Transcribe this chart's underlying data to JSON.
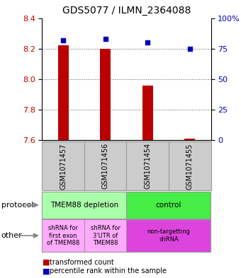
{
  "title": "GDS5077 / ILMN_2364088",
  "samples": [
    "GSM1071457",
    "GSM1071456",
    "GSM1071454",
    "GSM1071455"
  ],
  "bar_values": [
    8.22,
    8.2,
    7.96,
    7.61
  ],
  "dot_values": [
    82,
    83,
    80,
    75
  ],
  "bar_base": 7.6,
  "ylim_left": [
    7.6,
    8.4
  ],
  "ylim_right": [
    0,
    100
  ],
  "yticks_left": [
    7.6,
    7.8,
    8.0,
    8.2,
    8.4
  ],
  "yticks_right": [
    0,
    25,
    50,
    75,
    100
  ],
  "ytick_labels_right": [
    "0",
    "25",
    "50",
    "75",
    "100%"
  ],
  "bar_color": "#bb0000",
  "dot_color": "#0000bb",
  "grid_color": "#555555",
  "protocol_row": {
    "labels": [
      "TMEM88 depletion",
      "control"
    ],
    "spans": [
      2,
      2
    ],
    "colors": [
      "#aaffaa",
      "#44ee44"
    ]
  },
  "other_row": {
    "labels": [
      "shRNA for\nfirst exon\nof TMEM88",
      "shRNA for\n3'UTR of\nTMEM88",
      "non-targetting\nshRNA"
    ],
    "spans": [
      1,
      1,
      2
    ],
    "colors": [
      "#ffaaff",
      "#ffaaff",
      "#dd44dd"
    ]
  },
  "legend_red_label": "transformed count",
  "legend_blue_label": "percentile rank within the sample",
  "left_label_protocol": "protocol",
  "left_label_other": "other",
  "sample_box_color": "#cccccc",
  "sample_box_edge": "#999999",
  "bar_width": 0.25
}
